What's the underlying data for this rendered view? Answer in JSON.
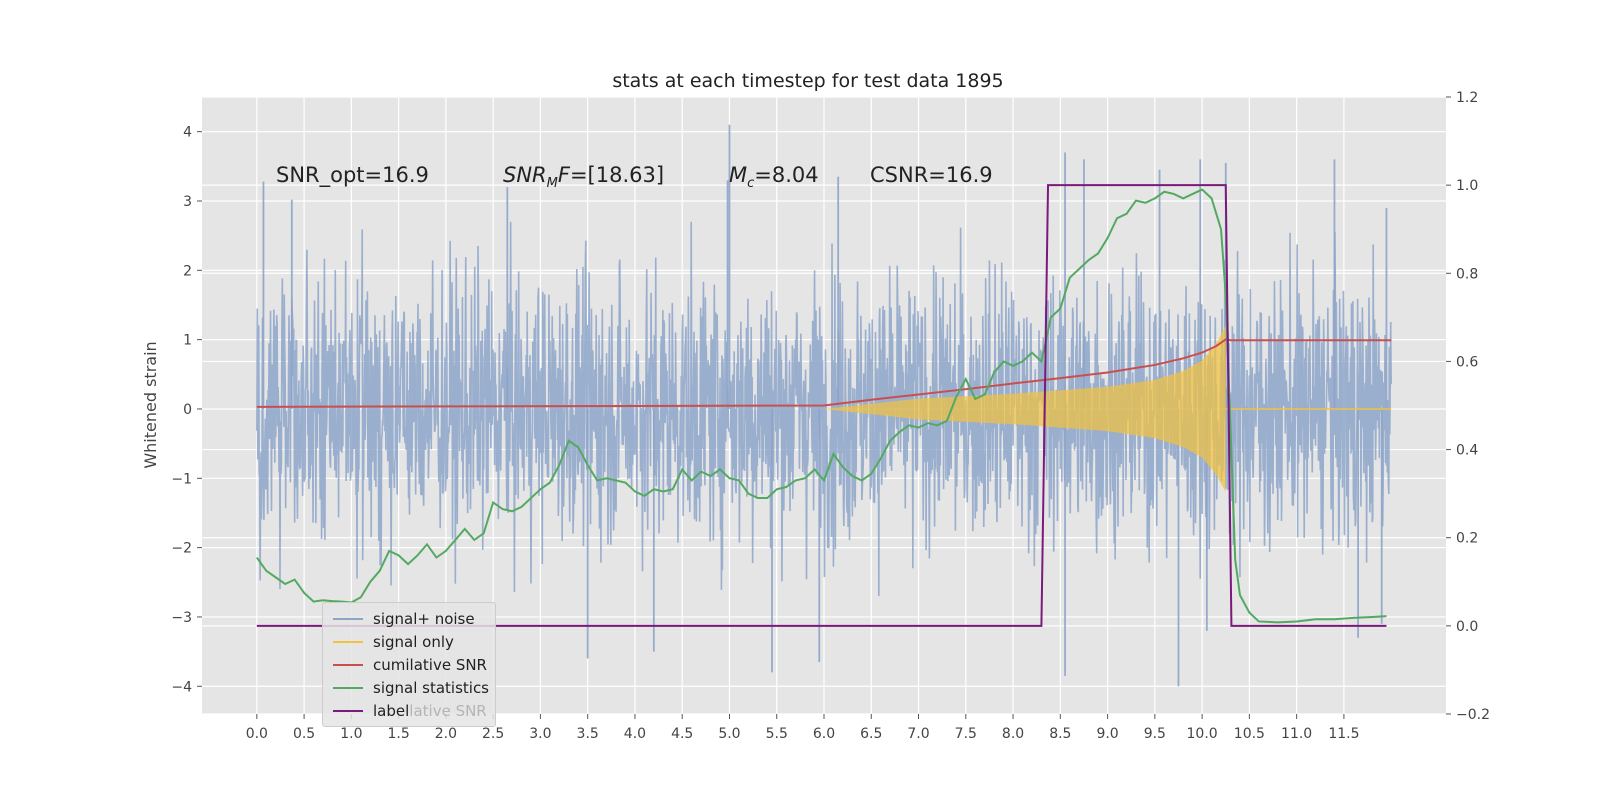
{
  "chart_data": {
    "type": "line",
    "title": "stats at each timestep for test data 1895",
    "ylabel": "Whitened strain",
    "xlim": [
      -0.58,
      12.58
    ],
    "ylim": [
      -4.4,
      4.5
    ],
    "y2lim": [
      -0.2,
      1.2
    ],
    "x_ticks": [
      "0.0",
      "0.5",
      "1.0",
      "1.5",
      "2.0",
      "2.5",
      "3.0",
      "3.5",
      "4.0",
      "4.5",
      "5.0",
      "5.5",
      "6.0",
      "6.5",
      "7.0",
      "7.5",
      "8.0",
      "8.5",
      "9.0",
      "9.5",
      "10.0",
      "10.5",
      "11.0",
      "11.5"
    ],
    "y_ticks": [
      "4",
      "3",
      "2",
      "1",
      "0",
      "−1",
      "−2",
      "−3",
      "−4"
    ],
    "y2_ticks": [
      "1.2",
      "1.0",
      "0.8",
      "0.6",
      "0.4",
      "0.2",
      "0.0",
      "−0.2"
    ],
    "grid": true,
    "annotations": {
      "snr_opt": "SNR_opt=16.9",
      "snr_mf_main": "SNR",
      "snr_mf_sub": "M",
      "snr_mf_rest": "F",
      "snr_mf_value": "=[18.63]",
      "mc_main": "M",
      "mc_sub": "c",
      "mc_value": "=8.04",
      "csnr": "CSNR=16.9"
    },
    "legend": {
      "placement": "lower-left",
      "entries": [
        {
          "label": "signal+ noise",
          "color": "#8da4c9"
        },
        {
          "label": "signal only",
          "color": "#f1c240"
        },
        {
          "label": "cumilative SNR",
          "color": "#c84f50"
        },
        {
          "label": "signal statistics",
          "color": "#54a961"
        },
        {
          "label": "label",
          "color": "#7a1a7a"
        }
      ],
      "ghost_text": "lative SNR"
    },
    "series": [
      {
        "name": "signal+ noise",
        "axis": "left",
        "color": "#8da4c9",
        "kind": "noise",
        "x_start": 0.0,
        "x_end": 12.0,
        "typical_range": [
          -2.0,
          2.0
        ],
        "peaks_up": [
          [
            0.07,
            3.28
          ],
          [
            0.37,
            3.02
          ],
          [
            2.65,
            3.2
          ],
          [
            4.98,
            3.3
          ],
          [
            5.0,
            4.1
          ],
          [
            6.15,
            3.35
          ],
          [
            8.55,
            3.7
          ],
          [
            8.75,
            3.6
          ],
          [
            9.55,
            3.45
          ],
          [
            9.98,
            3.6
          ],
          [
            10.25,
            3.55
          ],
          [
            11.4,
            3.6
          ],
          [
            11.95,
            2.9
          ]
        ],
        "peaks_down": [
          [
            3.5,
            -3.6
          ],
          [
            4.2,
            -3.5
          ],
          [
            5.45,
            -3.8
          ],
          [
            5.95,
            -3.65
          ],
          [
            8.55,
            -3.85
          ],
          [
            9.75,
            -4.0
          ],
          [
            10.05,
            -3.2
          ],
          [
            11.65,
            -3.3
          ],
          [
            11.9,
            -3.1
          ]
        ]
      },
      {
        "name": "signal only",
        "axis": "left",
        "color": "#f1c240",
        "kind": "envelope",
        "x_start": 6.0,
        "x_end": 10.25,
        "envelope": [
          [
            6.0,
            0.0
          ],
          [
            7.0,
            0.15
          ],
          [
            8.0,
            0.22
          ],
          [
            9.0,
            0.32
          ],
          [
            9.5,
            0.42
          ],
          [
            9.8,
            0.55
          ],
          [
            10.0,
            0.7
          ],
          [
            10.15,
            0.95
          ],
          [
            10.25,
            1.2
          ]
        ]
      },
      {
        "name": "cumilative SNR",
        "axis": "right",
        "color": "#c84f50",
        "x": [
          0.0,
          6.0,
          6.5,
          7.0,
          7.5,
          8.0,
          8.5,
          9.0,
          9.5,
          9.8,
          10.0,
          10.15,
          10.25,
          10.3,
          12.0
        ],
        "y": [
          0.497,
          0.5,
          0.513,
          0.525,
          0.537,
          0.55,
          0.562,
          0.575,
          0.592,
          0.607,
          0.62,
          0.635,
          0.65,
          0.648,
          0.648
        ]
      },
      {
        "name": "signal statistics",
        "axis": "right",
        "color": "#54a961",
        "x": [
          0.0,
          0.1,
          0.2,
          0.3,
          0.4,
          0.5,
          0.6,
          0.7,
          0.8,
          0.9,
          1.0,
          1.1,
          1.2,
          1.3,
          1.4,
          1.5,
          1.6,
          1.7,
          1.8,
          1.9,
          2.0,
          2.1,
          2.2,
          2.3,
          2.4,
          2.5,
          2.6,
          2.7,
          2.8,
          2.9,
          3.0,
          3.1,
          3.2,
          3.3,
          3.4,
          3.5,
          3.6,
          3.7,
          3.8,
          3.9,
          4.0,
          4.1,
          4.2,
          4.3,
          4.4,
          4.5,
          4.6,
          4.7,
          4.8,
          4.9,
          5.0,
          5.1,
          5.2,
          5.3,
          5.4,
          5.5,
          5.6,
          5.7,
          5.8,
          5.9,
          6.0,
          6.1,
          6.2,
          6.3,
          6.4,
          6.5,
          6.6,
          6.7,
          6.8,
          6.9,
          7.0,
          7.1,
          7.2,
          7.3,
          7.4,
          7.5,
          7.6,
          7.7,
          7.8,
          7.9,
          8.0,
          8.1,
          8.2,
          8.3,
          8.4,
          8.5,
          8.6,
          8.7,
          8.8,
          8.9,
          9.0,
          9.1,
          9.2,
          9.3,
          9.4,
          9.5,
          9.6,
          9.7,
          9.8,
          9.9,
          10.0,
          10.1,
          10.2,
          10.25,
          10.3,
          10.35,
          10.4,
          10.5,
          10.6,
          10.8,
          11.0,
          11.2,
          11.4,
          11.6,
          11.8,
          11.95
        ],
        "y": [
          0.155,
          0.125,
          0.11,
          0.095,
          0.105,
          0.075,
          0.055,
          0.058,
          0.056,
          0.055,
          0.053,
          0.065,
          0.1,
          0.125,
          0.17,
          0.16,
          0.14,
          0.16,
          0.185,
          0.155,
          0.17,
          0.195,
          0.22,
          0.195,
          0.21,
          0.28,
          0.265,
          0.26,
          0.27,
          0.29,
          0.31,
          0.325,
          0.365,
          0.42,
          0.405,
          0.365,
          0.33,
          0.335,
          0.33,
          0.325,
          0.305,
          0.295,
          0.31,
          0.305,
          0.31,
          0.355,
          0.33,
          0.35,
          0.34,
          0.355,
          0.335,
          0.33,
          0.3,
          0.29,
          0.29,
          0.31,
          0.315,
          0.33,
          0.335,
          0.355,
          0.33,
          0.39,
          0.36,
          0.34,
          0.33,
          0.345,
          0.38,
          0.42,
          0.44,
          0.455,
          0.45,
          0.46,
          0.455,
          0.465,
          0.52,
          0.56,
          0.515,
          0.525,
          0.575,
          0.6,
          0.59,
          0.6,
          0.62,
          0.6,
          0.7,
          0.72,
          0.79,
          0.81,
          0.83,
          0.845,
          0.88,
          0.925,
          0.935,
          0.965,
          0.96,
          0.97,
          0.985,
          0.98,
          0.97,
          0.98,
          0.99,
          0.97,
          0.9,
          0.75,
          0.45,
          0.15,
          0.07,
          0.03,
          0.01,
          0.008,
          0.01,
          0.015,
          0.015,
          0.018,
          0.02,
          0.022
        ]
      },
      {
        "name": "label",
        "axis": "right",
        "color": "#7a1a7a",
        "x": [
          0.0,
          8.3,
          8.37,
          10.25,
          10.31,
          11.95
        ],
        "y": [
          0.0,
          0.0,
          1.0,
          1.0,
          0.0,
          0.0
        ]
      }
    ]
  }
}
